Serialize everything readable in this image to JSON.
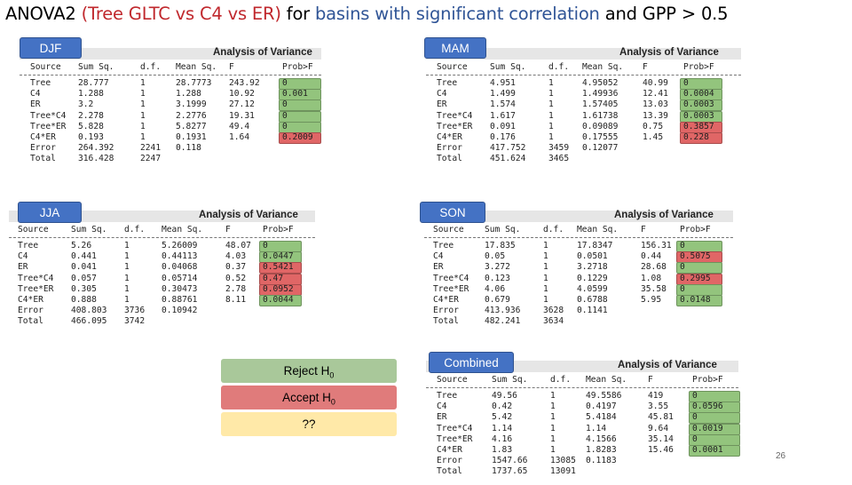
{
  "title": {
    "part1": "ANOVA2 ",
    "part2": "(Tree GLTC vs C4 vs ER)",
    "part3": " for ",
    "part4": "basins with significant correlation",
    "part5": " and GPP > 0.5"
  },
  "heading": "Analysis of Variance",
  "columns": [
    "Source",
    "Sum Sq.",
    "d.f.",
    "Mean Sq.",
    "F",
    "Prob>F"
  ],
  "panels": [
    {
      "label": "DJF",
      "rows": [
        [
          "Tree",
          "28.777",
          "1",
          "28.7773",
          "243.92",
          "0",
          "g"
        ],
        [
          "C4",
          "1.288",
          "1",
          "1.288",
          "10.92",
          "0.001",
          "g"
        ],
        [
          "ER",
          "3.2",
          "1",
          "3.1999",
          "27.12",
          "0",
          "g"
        ],
        [
          "Tree*C4",
          "2.278",
          "1",
          "2.2776",
          "19.31",
          "0",
          "g"
        ],
        [
          "Tree*ER",
          "5.828",
          "1",
          "5.8277",
          "49.4",
          "0",
          "g"
        ],
        [
          "C4*ER",
          "0.193",
          "1",
          "0.1931",
          "1.64",
          "0.2009",
          "r"
        ],
        [
          "Error",
          "264.392",
          "2241",
          "0.118",
          "",
          "",
          ""
        ],
        [
          "Total",
          "316.428",
          "2247",
          "",
          "",
          "",
          ""
        ]
      ]
    },
    {
      "label": "MAM",
      "rows": [
        [
          "Tree",
          "4.951",
          "1",
          "4.95052",
          "40.99",
          "0",
          "g"
        ],
        [
          "C4",
          "1.499",
          "1",
          "1.49936",
          "12.41",
          "0.0004",
          "g"
        ],
        [
          "ER",
          "1.574",
          "1",
          "1.57405",
          "13.03",
          "0.0003",
          "g"
        ],
        [
          "Tree*C4",
          "1.617",
          "1",
          "1.61738",
          "13.39",
          "0.0003",
          "g"
        ],
        [
          "Tree*ER",
          "0.091",
          "1",
          "0.09089",
          "0.75",
          "0.3857",
          "r"
        ],
        [
          "C4*ER",
          "0.176",
          "1",
          "0.17555",
          "1.45",
          "0.228",
          "r"
        ],
        [
          "Error",
          "417.752",
          "3459",
          "0.12077",
          "",
          "",
          ""
        ],
        [
          "Total",
          "451.624",
          "3465",
          "",
          "",
          "",
          ""
        ]
      ]
    },
    {
      "label": "JJA",
      "rows": [
        [
          "Tree",
          "5.26",
          "1",
          "5.26009",
          "48.07",
          "0",
          "g"
        ],
        [
          "C4",
          "0.441",
          "1",
          "0.44113",
          "4.03",
          "0.0447",
          "g"
        ],
        [
          "ER",
          "0.041",
          "1",
          "0.04068",
          "0.37",
          "0.5421",
          "r"
        ],
        [
          "Tree*C4",
          "0.057",
          "1",
          "0.05714",
          "0.52",
          "0.47",
          "r"
        ],
        [
          "Tree*ER",
          "0.305",
          "1",
          "0.30473",
          "2.78",
          "0.0952",
          "r"
        ],
        [
          "C4*ER",
          "0.888",
          "1",
          "0.88761",
          "8.11",
          "0.0044",
          "g"
        ],
        [
          "Error",
          "408.803",
          "3736",
          "0.10942",
          "",
          "",
          ""
        ],
        [
          "Total",
          "466.095",
          "3742",
          "",
          "",
          "",
          ""
        ]
      ]
    },
    {
      "label": "SON",
      "rows": [
        [
          "Tree",
          "17.835",
          "1",
          "17.8347",
          "156.31",
          "0",
          "g"
        ],
        [
          "C4",
          "0.05",
          "1",
          "0.0501",
          "0.44",
          "0.5075",
          "r"
        ],
        [
          "ER",
          "3.272",
          "1",
          "3.2718",
          "28.68",
          "0",
          "g"
        ],
        [
          "Tree*C4",
          "0.123",
          "1",
          "0.1229",
          "1.08",
          "0.2995",
          "r"
        ],
        [
          "Tree*ER",
          "4.06",
          "1",
          "4.0599",
          "35.58",
          "0",
          "g"
        ],
        [
          "C4*ER",
          "0.679",
          "1",
          "0.6788",
          "5.95",
          "0.0148",
          "g"
        ],
        [
          "Error",
          "413.936",
          "3628",
          "0.1141",
          "",
          "",
          ""
        ],
        [
          "Total",
          "482.241",
          "3634",
          "",
          "",
          "",
          ""
        ]
      ]
    },
    {
      "label": "Combined",
      "rows": [
        [
          "Tree",
          "49.56",
          "1",
          "49.5586",
          "419",
          "0",
          "g"
        ],
        [
          "C4",
          "0.42",
          "1",
          "0.4197",
          "3.55",
          "0.0596",
          "g"
        ],
        [
          "ER",
          "5.42",
          "1",
          "5.4184",
          "45.81",
          "0",
          "g"
        ],
        [
          "Tree*C4",
          "1.14",
          "1",
          "1.14",
          "9.64",
          "0.0019",
          "g"
        ],
        [
          "Tree*ER",
          "4.16",
          "1",
          "4.1566",
          "35.14",
          "0",
          "g"
        ],
        [
          "C4*ER",
          "1.83",
          "1",
          "1.8283",
          "15.46",
          "0.0001",
          "g"
        ],
        [
          "Error",
          "1547.66",
          "13085",
          "0.1183",
          "",
          "",
          ""
        ],
        [
          "Total",
          "1737.65",
          "13091",
          "",
          "",
          "",
          ""
        ]
      ]
    }
  ],
  "legend": {
    "reject": "Reject H",
    "accept": "Accept H",
    "subscript": "0",
    "unknown": "??"
  },
  "colors": {
    "significant": "#93c47d",
    "not_significant": "#e06666",
    "unknown": "#ffe599",
    "label_bg": "#4472c4"
  },
  "page_number": "26"
}
